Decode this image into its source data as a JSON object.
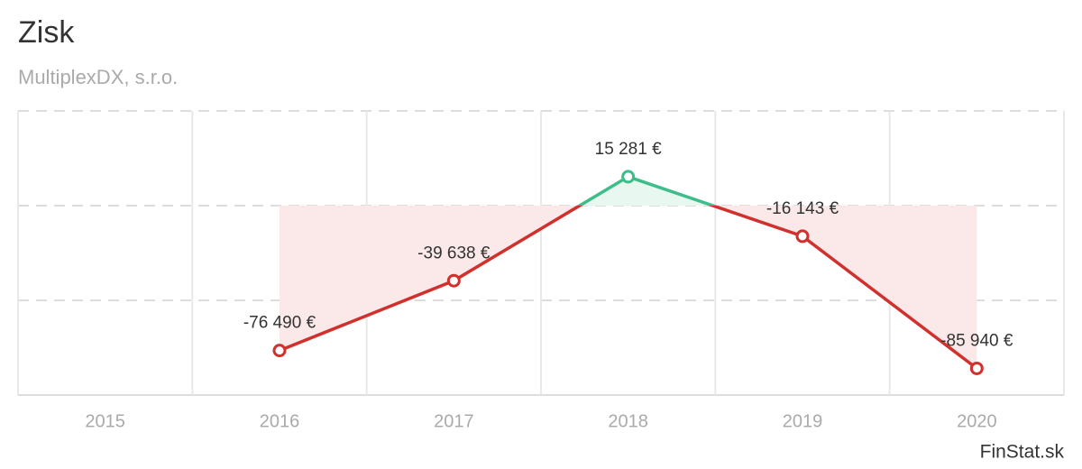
{
  "chart_data": {
    "type": "line",
    "title": "Zisk",
    "subtitle": "MultiplexDX, s.r.o.",
    "categories": [
      "2015",
      "2016",
      "2017",
      "2018",
      "2019",
      "2020"
    ],
    "values": [
      null,
      -76490,
      -39638,
      15281,
      -16143,
      -85940
    ],
    "value_labels": [
      null,
      "-76 490 €",
      "-39 638 €",
      "15 281 €",
      "-16 143 €",
      "-85 940 €"
    ],
    "color": "#d0312d",
    "positive_color": "#3dbd8a",
    "area_color": "#fbe9ea",
    "positive_area_color": "#e9f7f1",
    "ylim": [
      -100000,
      50000
    ],
    "yticks": [
      -100000,
      -50000,
      0,
      50000
    ],
    "grid": true,
    "credit": "FinStat.sk"
  }
}
